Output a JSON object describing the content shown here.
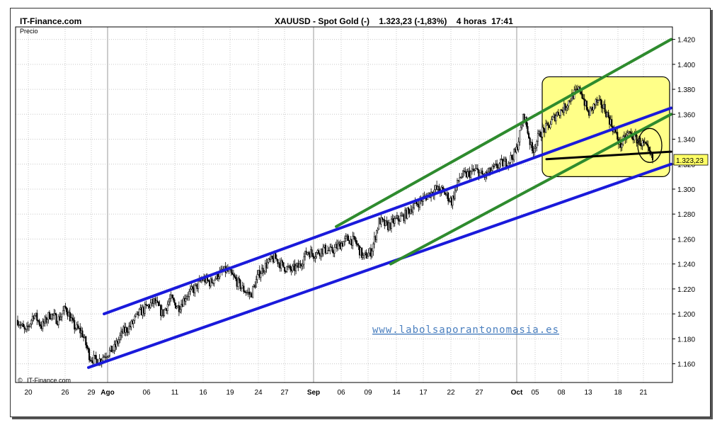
{
  "header": {
    "brand": "IT-Finance.com",
    "title": "XAUUSD - Spot Gold (-)    1.323,23 (-1,83%)    4 horas  17:41"
  },
  "chart_data": {
    "type": "candlestick",
    "title": "XAUUSD - Spot Gold (-)",
    "ylabel": "Precio",
    "ylim": [
      1.145,
      1.43
    ],
    "last_price": 1.32323,
    "last_price_label": "1.323,23",
    "y_ticks": [
      {
        "v": 1.16,
        "label": "1.160"
      },
      {
        "v": 1.18,
        "label": "1.180"
      },
      {
        "v": 1.2,
        "label": "1.200"
      },
      {
        "v": 1.22,
        "label": "1.220"
      },
      {
        "v": 1.24,
        "label": "1.240"
      },
      {
        "v": 1.26,
        "label": "1.260"
      },
      {
        "v": 1.28,
        "label": "1.280"
      },
      {
        "v": 1.3,
        "label": "1.300"
      },
      {
        "v": 1.32,
        "label": "1.320"
      },
      {
        "v": 1.34,
        "label": "1.340"
      },
      {
        "v": 1.36,
        "label": "1.360"
      },
      {
        "v": 1.38,
        "label": "1.380"
      },
      {
        "v": 1.4,
        "label": "1.400"
      },
      {
        "v": 1.42,
        "label": "1.420"
      }
    ],
    "x_ticks": [
      {
        "label": "20",
        "bold": false
      },
      {
        "label": "26",
        "bold": false
      },
      {
        "label": "29",
        "bold": false
      },
      {
        "label": "Ago",
        "bold": true
      },
      {
        "label": "06",
        "bold": false
      },
      {
        "label": "11",
        "bold": false
      },
      {
        "label": "16",
        "bold": false
      },
      {
        "label": "19",
        "bold": false
      },
      {
        "label": "24",
        "bold": false
      },
      {
        "label": "27",
        "bold": false
      },
      {
        "label": "Sep",
        "bold": true
      },
      {
        "label": "06",
        "bold": false
      },
      {
        "label": "09",
        "bold": false
      },
      {
        "label": "14",
        "bold": false
      },
      {
        "label": "17",
        "bold": false
      },
      {
        "label": "22",
        "bold": false
      },
      {
        "label": "27",
        "bold": false
      },
      {
        "label": "Oct",
        "bold": true
      },
      {
        "label": "05",
        "bold": false
      },
      {
        "label": "08",
        "bold": false
      },
      {
        "label": "13",
        "bold": false
      },
      {
        "label": "18",
        "bold": false
      },
      {
        "label": "21",
        "bold": false
      }
    ],
    "price_path": [
      1.195,
      1.185,
      1.2,
      1.19,
      1.2,
      1.195,
      1.205,
      1.19,
      1.185,
      1.165,
      1.162,
      1.168,
      1.172,
      1.185,
      1.19,
      1.2,
      1.205,
      1.21,
      1.2,
      1.212,
      1.205,
      1.215,
      1.22,
      1.228,
      1.225,
      1.232,
      1.235,
      1.228,
      1.22,
      1.215,
      1.232,
      1.24,
      1.245,
      1.238,
      1.235,
      1.238,
      1.25,
      1.248,
      1.252,
      1.25,
      1.255,
      1.26,
      1.258,
      1.245,
      1.25,
      1.275,
      1.27,
      1.275,
      1.278,
      1.285,
      1.29,
      1.295,
      1.3,
      1.298,
      1.29,
      1.31,
      1.312,
      1.315,
      1.31,
      1.315,
      1.32,
      1.322,
      1.33,
      1.36,
      1.33,
      1.345,
      1.35,
      1.36,
      1.365,
      1.375,
      1.38,
      1.36,
      1.37,
      1.365,
      1.35,
      1.335,
      1.345,
      1.34,
      1.335,
      1.3232
    ],
    "trendlines": [
      {
        "name": "upper-blue",
        "color": "#1a1adb",
        "from": [
          "29",
          1.2
        ],
        "to": [
          "end",
          1.365
        ]
      },
      {
        "name": "lower-blue",
        "color": "#1a1adb",
        "from": [
          "29",
          1.157
        ],
        "to": [
          "end",
          1.32
        ]
      },
      {
        "name": "upper-green",
        "color": "#2e8b2e",
        "from": [
          "06 Sep",
          1.27
        ],
        "to": [
          "end",
          1.42
        ]
      },
      {
        "name": "lower-green",
        "color": "#2e8b2e",
        "from": [
          "14 Sep",
          1.24
        ],
        "to": [
          "end",
          1.36
        ]
      },
      {
        "name": "support-black",
        "color": "#000000",
        "from": [
          "05 Oct",
          1.324
        ],
        "to": [
          "end",
          1.33
        ]
      }
    ],
    "annotations": [
      {
        "name": "highlight-box",
        "color": "#ffff88"
      },
      {
        "name": "ellipse",
        "color": "#000000"
      }
    ],
    "watermark": "www.labolsaporantonomasia.es",
    "credit": "IT-Finance.com",
    "colors": {
      "up": "#000000",
      "down": "#000000",
      "grid": "#c8c8c8",
      "highlight": "#ffff88",
      "price_tag": "#ffff66"
    }
  }
}
